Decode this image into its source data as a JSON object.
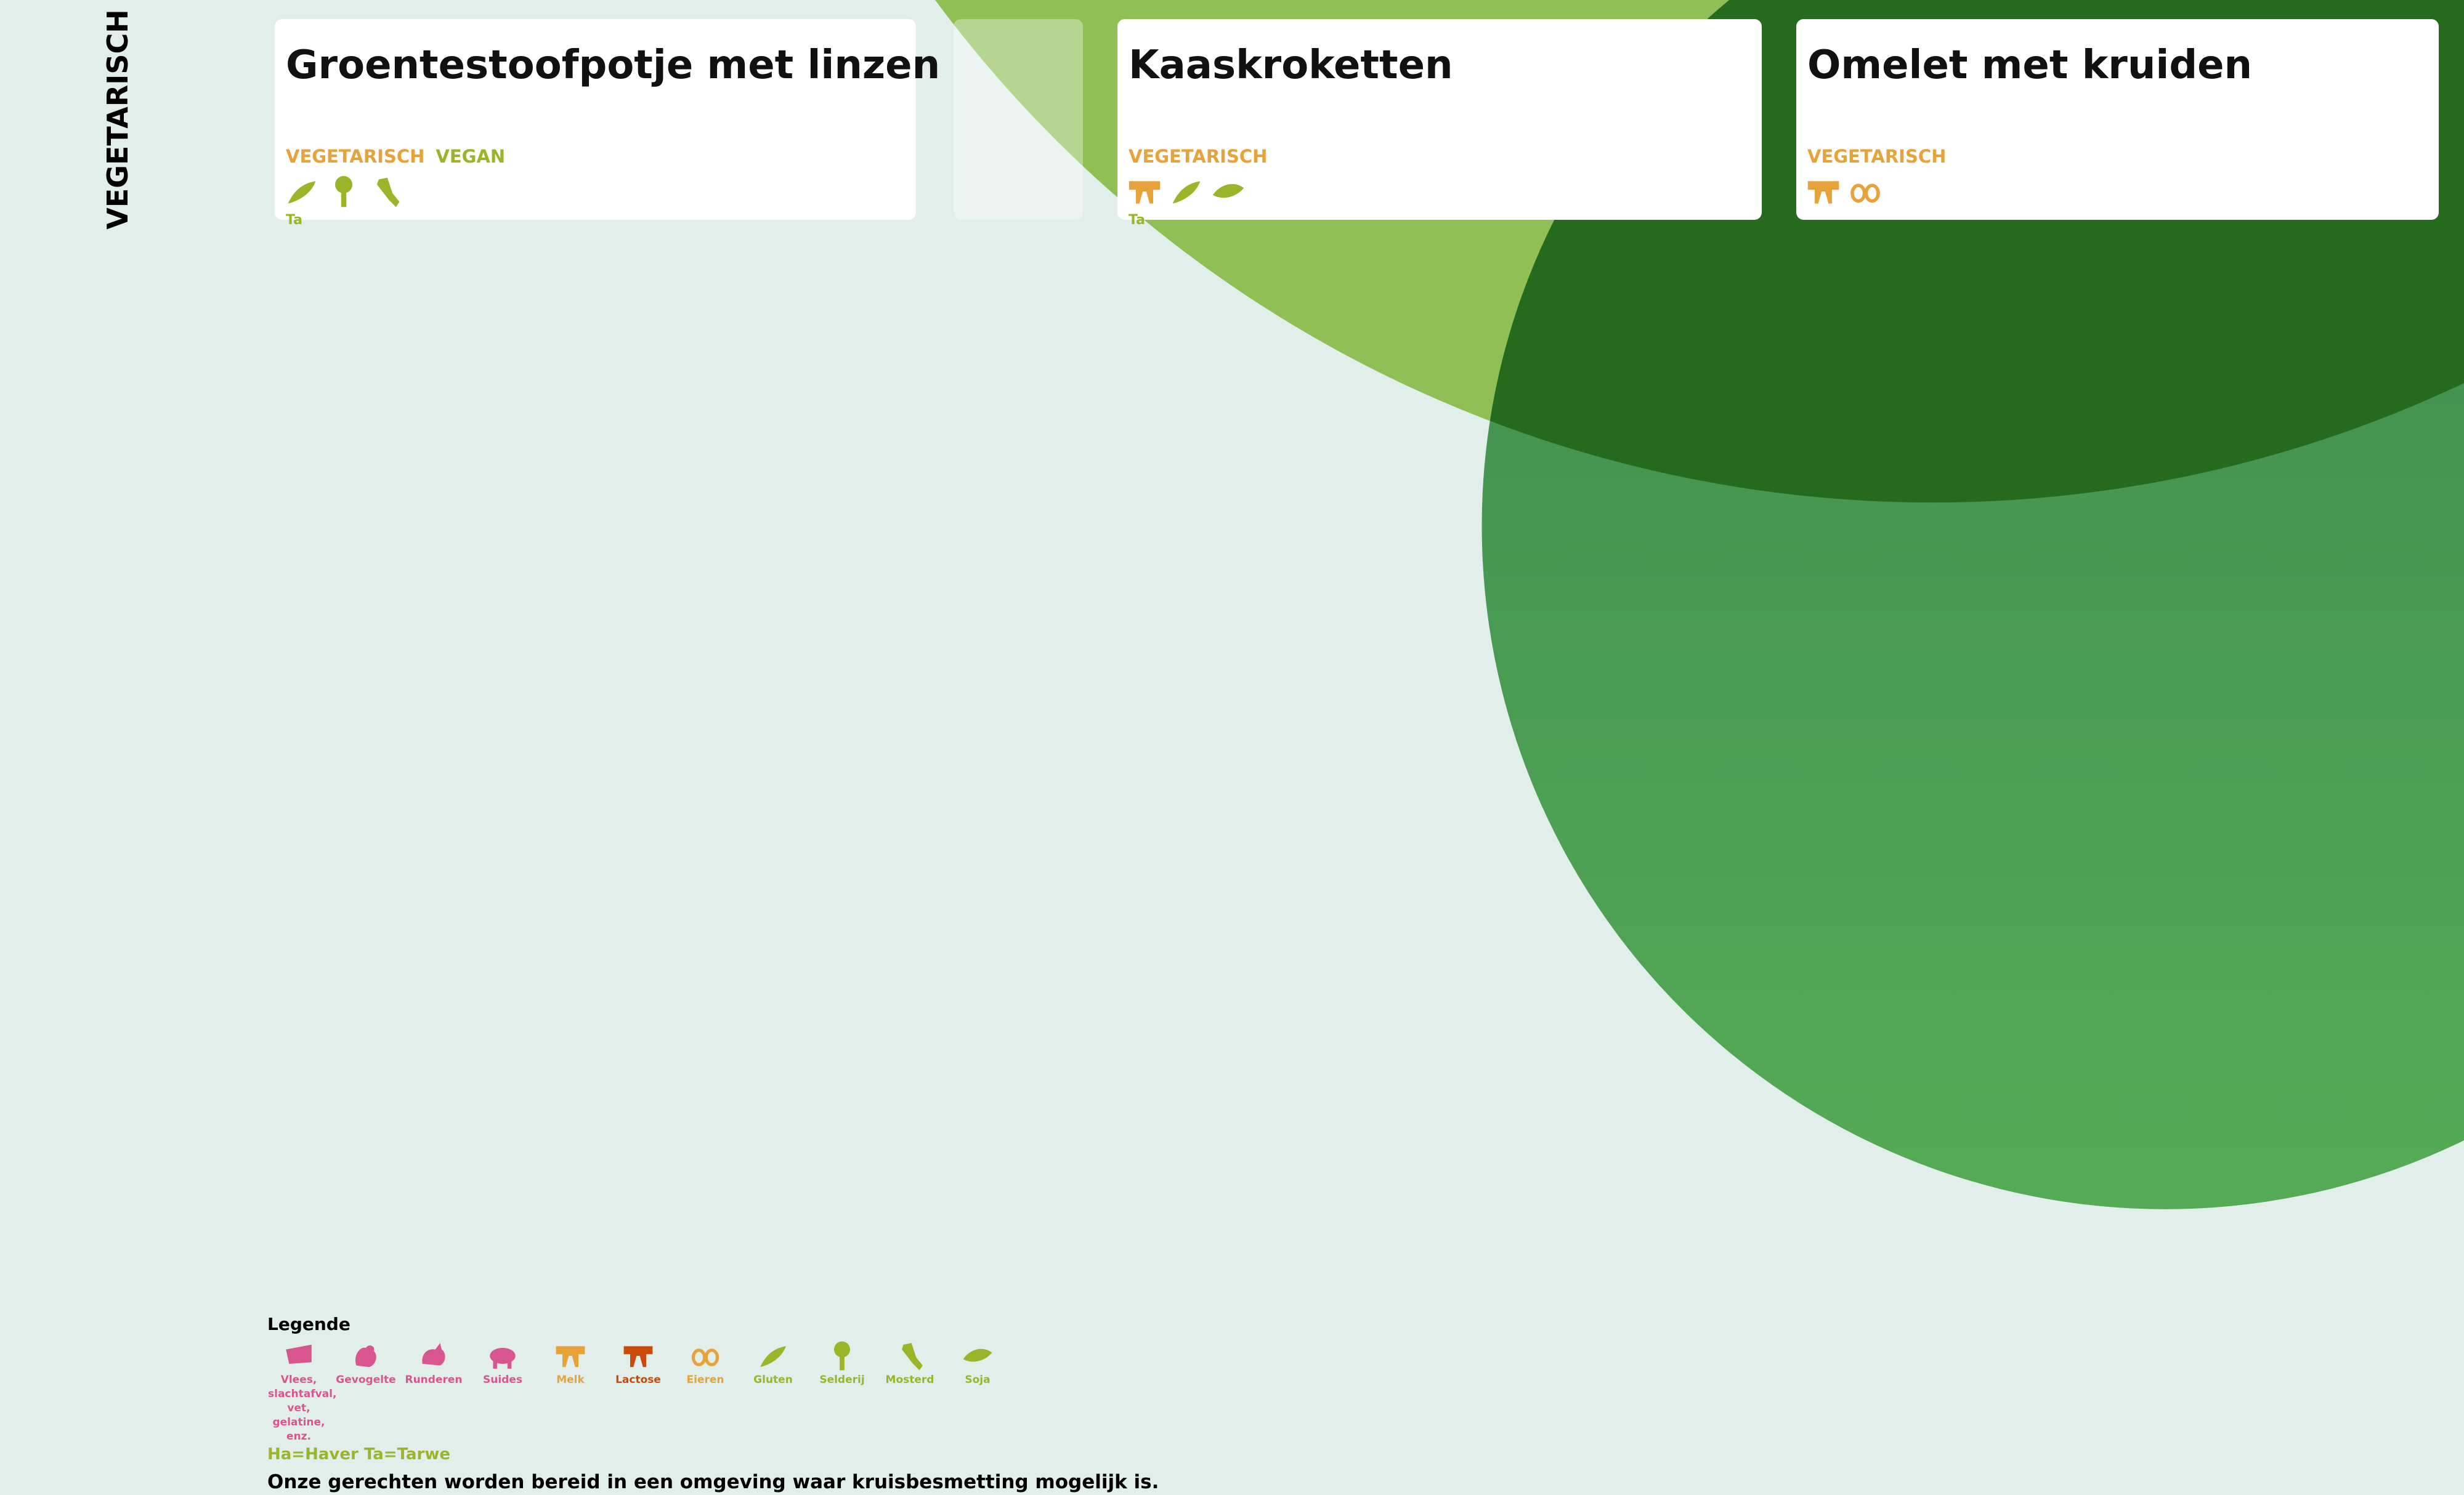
{
  "section": "VEGETARISCH",
  "cards": [
    {
      "title": "Groentestoofpotje met linzen",
      "tags": [
        "VEGETARISCH",
        "VEGAN"
      ],
      "note": "Ta"
    },
    {
      "title": "Kaaskroketten",
      "tags": [
        "VEGETARISCH"
      ],
      "note": "Ta"
    },
    {
      "title": "Omelet met kruiden",
      "tags": [
        "VEGETARISCH"
      ]
    }
  ],
  "legend": {
    "title": "Legende",
    "items": [
      {
        "label": "Vlees, slachtafval, vet, gelatine, enz.",
        "color": "#d9558f"
      },
      {
        "label": "Gevogelte",
        "color": "#d9558f"
      },
      {
        "label": "Runderen",
        "color": "#d9558f"
      },
      {
        "label": "Suides",
        "color": "#d9558f"
      },
      {
        "label": "Melk",
        "color": "#e8a23a"
      },
      {
        "label": "Lactose",
        "color": "#c94a0a"
      },
      {
        "label": "Eieren",
        "color": "#e8a23a"
      },
      {
        "label": "Gluten",
        "color": "#9bb52a"
      },
      {
        "label": "Selderij",
        "color": "#9bb52a"
      },
      {
        "label": "Mosterd",
        "color": "#9bb52a"
      },
      {
        "label": "Soja",
        "color": "#9bb52a"
      }
    ],
    "grain_note": "Ha=Haver Ta=Tarwe",
    "footer": "Onze gerechten worden bereid in een omgeving waar kruisbesmetting mogelijk is."
  }
}
